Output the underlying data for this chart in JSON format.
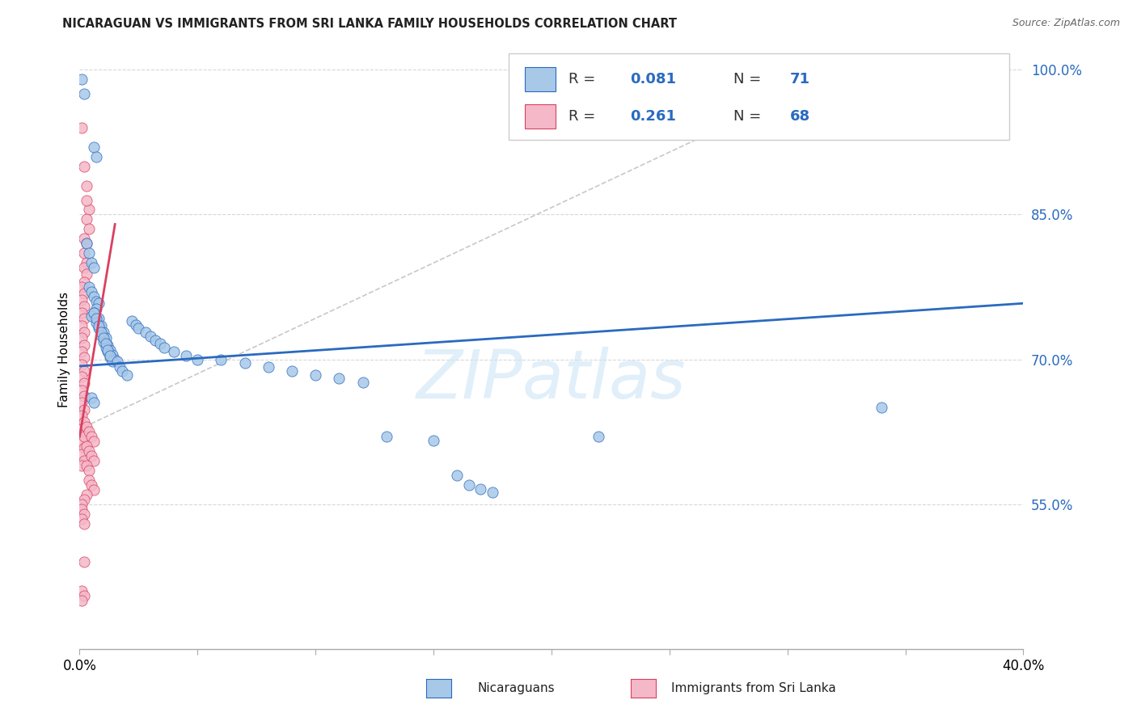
{
  "title": "NICARAGUAN VS IMMIGRANTS FROM SRI LANKA FAMILY HOUSEHOLDS CORRELATION CHART",
  "source": "Source: ZipAtlas.com",
  "ylabel": "Family Households",
  "watermark": "ZIPatlas",
  "xlim": [
    0.0,
    0.4
  ],
  "ylim": [
    0.4,
    1.02
  ],
  "yticks": [
    0.55,
    0.7,
    0.85,
    1.0
  ],
  "ytick_labels": [
    "55.0%",
    "70.0%",
    "85.0%",
    "100.0%"
  ],
  "xtick_vals": [
    0.0,
    0.05,
    0.1,
    0.15,
    0.2,
    0.25,
    0.3,
    0.35,
    0.4
  ],
  "xtick_labels": [
    "0.0%",
    "",
    "",
    "",
    "",
    "",
    "",
    "",
    "40.0%"
  ],
  "color_blue": "#a8c8e8",
  "color_pink": "#f4b8c8",
  "trendline_blue": "#2a6abf",
  "trendline_pink": "#d94060",
  "trendline_grey": "#c8c8c8",
  "background": "#ffffff",
  "grid_color": "#d8d8d8",
  "blue_scatter": [
    [
      0.001,
      0.99
    ],
    [
      0.002,
      0.975
    ],
    [
      0.006,
      0.92
    ],
    [
      0.007,
      0.91
    ],
    [
      0.003,
      0.82
    ],
    [
      0.004,
      0.81
    ],
    [
      0.005,
      0.8
    ],
    [
      0.006,
      0.795
    ],
    [
      0.004,
      0.775
    ],
    [
      0.005,
      0.77
    ],
    [
      0.006,
      0.765
    ],
    [
      0.007,
      0.76
    ],
    [
      0.008,
      0.758
    ],
    [
      0.007,
      0.752
    ],
    [
      0.006,
      0.748
    ],
    [
      0.005,
      0.745
    ],
    [
      0.008,
      0.742
    ],
    [
      0.007,
      0.738
    ],
    [
      0.009,
      0.735
    ],
    [
      0.008,
      0.732
    ],
    [
      0.01,
      0.728
    ],
    [
      0.009,
      0.725
    ],
    [
      0.011,
      0.722
    ],
    [
      0.01,
      0.718
    ],
    [
      0.012,
      0.715
    ],
    [
      0.011,
      0.712
    ],
    [
      0.013,
      0.71
    ],
    [
      0.012,
      0.708
    ],
    [
      0.014,
      0.705
    ],
    [
      0.013,
      0.702
    ],
    [
      0.015,
      0.7
    ],
    [
      0.014,
      0.698
    ],
    [
      0.006,
      0.748
    ],
    [
      0.007,
      0.742
    ],
    [
      0.008,
      0.735
    ],
    [
      0.009,
      0.728
    ],
    [
      0.01,
      0.722
    ],
    [
      0.011,
      0.716
    ],
    [
      0.012,
      0.71
    ],
    [
      0.013,
      0.704
    ],
    [
      0.016,
      0.698
    ],
    [
      0.017,
      0.692
    ],
    [
      0.018,
      0.688
    ],
    [
      0.02,
      0.684
    ],
    [
      0.022,
      0.74
    ],
    [
      0.024,
      0.736
    ],
    [
      0.025,
      0.732
    ],
    [
      0.028,
      0.728
    ],
    [
      0.03,
      0.724
    ],
    [
      0.032,
      0.72
    ],
    [
      0.034,
      0.716
    ],
    [
      0.036,
      0.712
    ],
    [
      0.04,
      0.708
    ],
    [
      0.045,
      0.704
    ],
    [
      0.05,
      0.7
    ],
    [
      0.06,
      0.7
    ],
    [
      0.07,
      0.696
    ],
    [
      0.08,
      0.692
    ],
    [
      0.09,
      0.688
    ],
    [
      0.1,
      0.684
    ],
    [
      0.11,
      0.68
    ],
    [
      0.12,
      0.676
    ],
    [
      0.13,
      0.62
    ],
    [
      0.15,
      0.616
    ],
    [
      0.16,
      0.58
    ],
    [
      0.165,
      0.57
    ],
    [
      0.17,
      0.566
    ],
    [
      0.175,
      0.562
    ],
    [
      0.22,
      0.62
    ],
    [
      0.34,
      0.65
    ],
    [
      0.005,
      0.66
    ],
    [
      0.006,
      0.655
    ]
  ],
  "pink_scatter": [
    [
      0.001,
      0.94
    ],
    [
      0.002,
      0.9
    ],
    [
      0.003,
      0.88
    ],
    [
      0.004,
      0.855
    ],
    [
      0.003,
      0.845
    ],
    [
      0.004,
      0.835
    ],
    [
      0.002,
      0.825
    ],
    [
      0.003,
      0.82
    ],
    [
      0.002,
      0.81
    ],
    [
      0.003,
      0.8
    ],
    [
      0.002,
      0.795
    ],
    [
      0.003,
      0.788
    ],
    [
      0.002,
      0.78
    ],
    [
      0.001,
      0.775
    ],
    [
      0.002,
      0.768
    ],
    [
      0.001,
      0.762
    ],
    [
      0.002,
      0.755
    ],
    [
      0.001,
      0.748
    ],
    [
      0.002,
      0.742
    ],
    [
      0.001,
      0.735
    ],
    [
      0.002,
      0.728
    ],
    [
      0.001,
      0.722
    ],
    [
      0.002,
      0.715
    ],
    [
      0.001,
      0.708
    ],
    [
      0.002,
      0.702
    ],
    [
      0.001,
      0.695
    ],
    [
      0.002,
      0.688
    ],
    [
      0.001,
      0.682
    ],
    [
      0.002,
      0.675
    ],
    [
      0.001,
      0.668
    ],
    [
      0.002,
      0.662
    ],
    [
      0.001,
      0.655
    ],
    [
      0.002,
      0.648
    ],
    [
      0.001,
      0.642
    ],
    [
      0.002,
      0.635
    ],
    [
      0.001,
      0.628
    ],
    [
      0.002,
      0.622
    ],
    [
      0.001,
      0.615
    ],
    [
      0.002,
      0.608
    ],
    [
      0.001,
      0.602
    ],
    [
      0.002,
      0.595
    ],
    [
      0.001,
      0.59
    ],
    [
      0.002,
      0.62
    ],
    [
      0.003,
      0.63
    ],
    [
      0.004,
      0.625
    ],
    [
      0.005,
      0.62
    ],
    [
      0.006,
      0.615
    ],
    [
      0.003,
      0.61
    ],
    [
      0.004,
      0.605
    ],
    [
      0.005,
      0.6
    ],
    [
      0.006,
      0.595
    ],
    [
      0.003,
      0.59
    ],
    [
      0.004,
      0.585
    ],
    [
      0.004,
      0.575
    ],
    [
      0.005,
      0.57
    ],
    [
      0.006,
      0.565
    ],
    [
      0.003,
      0.56
    ],
    [
      0.002,
      0.555
    ],
    [
      0.001,
      0.55
    ],
    [
      0.001,
      0.545
    ],
    [
      0.002,
      0.54
    ],
    [
      0.001,
      0.535
    ],
    [
      0.002,
      0.53
    ],
    [
      0.002,
      0.49
    ],
    [
      0.001,
      0.46
    ],
    [
      0.002,
      0.455
    ],
    [
      0.001,
      0.45
    ],
    [
      0.003,
      0.865
    ]
  ],
  "blue_trendline": [
    [
      0.0,
      0.693
    ],
    [
      0.4,
      0.758
    ]
  ],
  "pink_trendline": [
    [
      0.0,
      0.62
    ],
    [
      0.015,
      0.84
    ]
  ],
  "grey_dashed_line": [
    [
      0.002,
      0.63
    ],
    [
      0.32,
      0.995
    ]
  ]
}
